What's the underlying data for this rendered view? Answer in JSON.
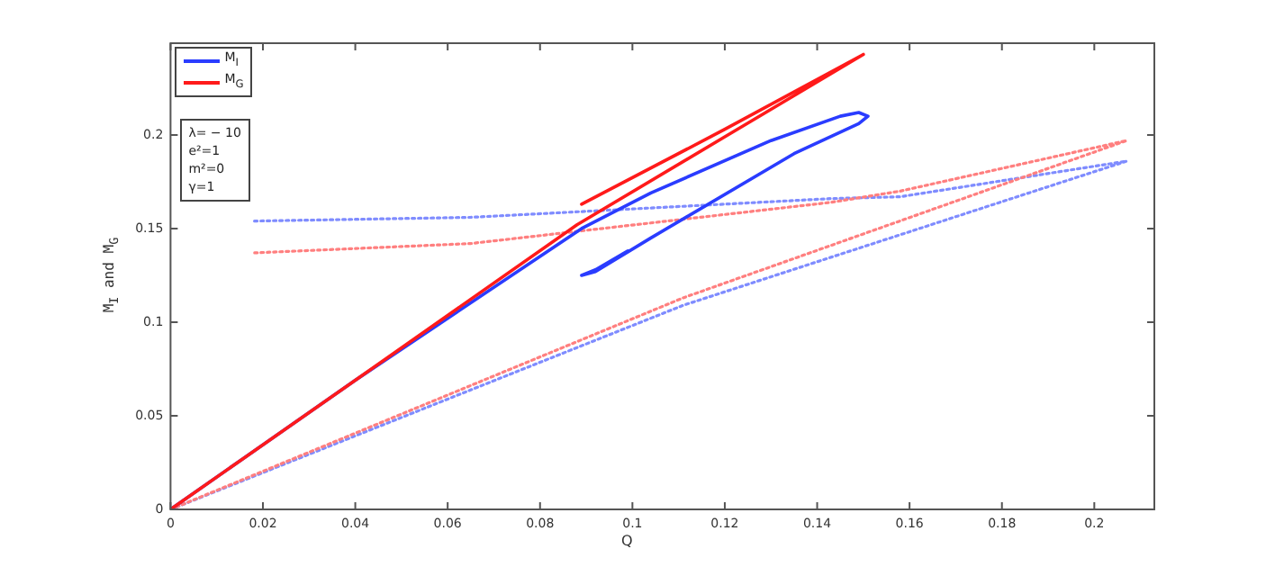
{
  "chart_data": {
    "type": "line",
    "xlabel": "Q",
    "ylabel": "M$_{I}$ and M$_{G}$",
    "xlim": [
      0,
      0.213
    ],
    "ylim": [
      0,
      0.249
    ],
    "xticks": [
      0,
      0.02,
      0.04,
      0.06,
      0.08,
      0.1,
      0.12,
      0.14,
      0.16,
      0.18,
      0.2
    ],
    "yticks": [
      0,
      0.05,
      0.1,
      0.15,
      0.2
    ],
    "grid": false,
    "legend": "top left",
    "marker": "none",
    "annotations": [
      "λ= − 10",
      "e²=1",
      "m²=0",
      "γ=1"
    ],
    "series": [
      {
        "name": "M$_{I}$",
        "color": "#2a3cff",
        "line_style": "solid",
        "x": [
          0,
          0.04,
          0.089,
          0.104,
          0.13,
          0.145,
          0.149,
          0.151,
          0.149,
          0.135,
          0.104,
          0.092,
          0.089,
          0.092,
          0.099
        ],
        "values": [
          0,
          0.069,
          0.15,
          0.169,
          0.197,
          0.21,
          0.212,
          0.21,
          0.206,
          0.19,
          0.145,
          0.127,
          0.125,
          0.128,
          0.138
        ]
      },
      {
        "name": "M$_{G}$",
        "color": "#ff1a1a",
        "line_style": "solid",
        "x": [
          0,
          0.04,
          0.088,
          0.12,
          0.15,
          0.12,
          0.089
        ],
        "values": [
          0,
          0.069,
          0.152,
          0.199,
          0.243,
          0.203,
          0.163
        ]
      },
      {
        "color": "#7f8cff",
        "line_style": "dotted",
        "x": [
          0,
          0.111,
          0.207,
          0.158,
          0.143,
          0.065,
          0.018
        ],
        "values": [
          0,
          0.109,
          0.186,
          0.167,
          0.166,
          0.156,
          0.154
        ]
      },
      {
        "color": "#ff7f7f",
        "line_style": "dotted",
        "x": [
          0,
          0.111,
          0.207,
          0.158,
          0.143,
          0.065,
          0.018
        ],
        "values": [
          0,
          0.113,
          0.197,
          0.17,
          0.164,
          0.142,
          0.137
        ]
      }
    ]
  }
}
